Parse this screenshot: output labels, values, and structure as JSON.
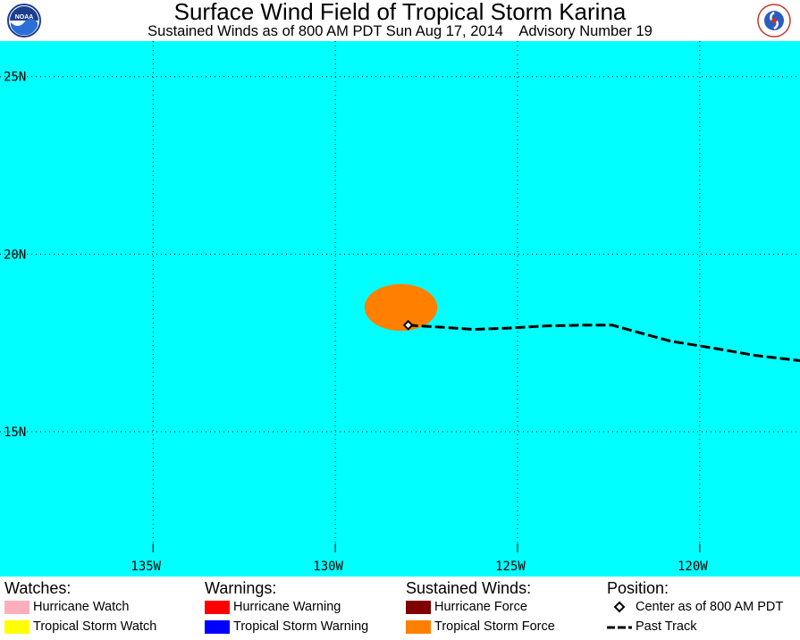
{
  "header": {
    "title": "Surface Wind Field of Tropical Storm Karina",
    "subtitle": "Sustained Winds as of 800 AM PDT Sun Aug 17, 2014    Advisory Number 19",
    "logo_left_text": "NOAA",
    "logo_right_text": "NATIONAL WEATHER SERVICE"
  },
  "map": {
    "ocean_color": "#00ffff",
    "grid": true,
    "lat_labels": [
      "25N",
      "20N",
      "15N"
    ],
    "lon_labels": [
      "135W",
      "130W",
      "125W",
      "120W"
    ],
    "lat_values": [
      25,
      20,
      15
    ],
    "lon_values": [
      -135,
      -130,
      -125,
      -120
    ],
    "lon_range": [
      -139.2,
      -117.25
    ],
    "lat_range": [
      11.6,
      26.0
    ],
    "wind_field": {
      "type": "Tropical Storm Force",
      "color": "#ff8000",
      "center_lon": -128.2,
      "center_lat": 18.5,
      "radius_lon": 1.0,
      "radius_lat": 0.66
    },
    "storm_center": {
      "lon": -128.0,
      "lat": 18.0
    },
    "past_track": [
      [
        -128.0,
        18.0
      ],
      [
        -127.2,
        17.95
      ],
      [
        -126.2,
        17.88
      ],
      [
        -125.2,
        17.92
      ],
      [
        -124.2,
        17.98
      ],
      [
        -123.2,
        18.0
      ],
      [
        -122.4,
        18.0
      ],
      [
        -121.7,
        17.8
      ],
      [
        -120.8,
        17.55
      ],
      [
        -119.6,
        17.35
      ],
      [
        -118.5,
        17.15
      ],
      [
        -117.25,
        17.0
      ]
    ]
  },
  "legend": {
    "watches": {
      "heading": "Watches:",
      "items": [
        {
          "label": "Hurricane Watch",
          "color": "#ffaebe"
        },
        {
          "label": "Tropical Storm Watch",
          "color": "#ffff00"
        }
      ]
    },
    "warnings": {
      "heading": "Warnings:",
      "items": [
        {
          "label": "Hurricane Warning",
          "color": "#ff0000"
        },
        {
          "label": "Tropical Storm Warning",
          "color": "#0000ff"
        }
      ]
    },
    "winds": {
      "heading": "Sustained Winds:",
      "items": [
        {
          "label": "Hurricane Force",
          "color": "#800000"
        },
        {
          "label": "Tropical Storm Force",
          "color": "#ff8000"
        }
      ]
    },
    "position": {
      "heading": "Position:",
      "items": [
        {
          "label": "Center as of 800 AM PDT",
          "symbol": "diamond-icon"
        },
        {
          "label": "Past Track",
          "symbol": "dashed-line-icon"
        }
      ]
    }
  }
}
